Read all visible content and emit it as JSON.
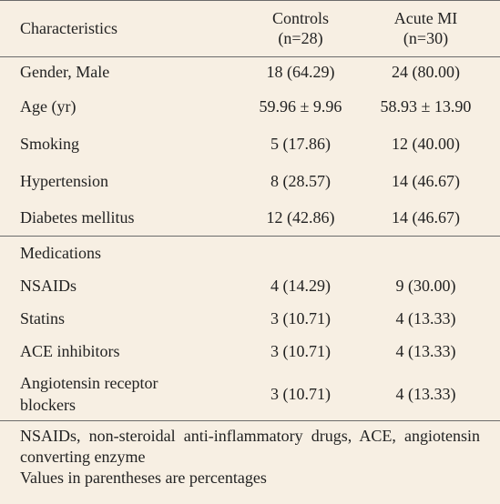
{
  "table": {
    "header": {
      "characteristic": "Characteristics",
      "columns": [
        {
          "name": "Controls",
          "n": "(n=28)"
        },
        {
          "name": "Acute MI",
          "n": "(n=30)"
        }
      ]
    },
    "rows": [
      [
        "Gender, Male",
        "18 (64.29)",
        "24 (80.00)"
      ],
      [
        "Age (yr)",
        "59.96 ± 9.96",
        "58.93 ± 13.90"
      ],
      [
        "Smoking",
        "5 (17.86)",
        "12 (40.00)"
      ],
      [
        "Hypertension",
        "8 (28.57)",
        "14 (46.67)"
      ],
      [
        "Diabetes mellitus",
        "12 (42.86)",
        "14 (46.67)"
      ]
    ],
    "section": "Medications",
    "medication_rows": [
      [
        "NSAIDs",
        "4 (14.29)",
        "9 (30.00)"
      ],
      [
        "Statins",
        "3 (10.71)",
        "4 (13.33)"
      ],
      [
        "ACE inhibitors",
        "3 (10.71)",
        "4 (13.33)"
      ],
      [
        "Angiotensin receptor blockers",
        "3 (10.71)",
        "4 (13.33)"
      ]
    ],
    "footnotes": [
      "NSAIDs, non-steroidal anti-inflammatory drugs, ACE, angiotensin converting enzyme",
      "Values in parentheses are percentages"
    ]
  }
}
